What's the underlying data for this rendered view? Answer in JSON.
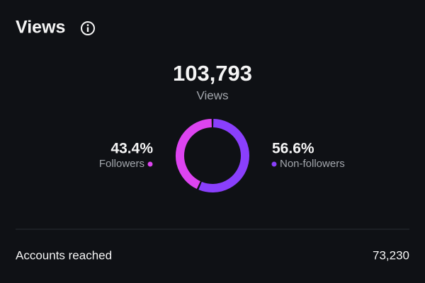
{
  "header": {
    "title": "Views"
  },
  "total": {
    "value": "103,793",
    "label": "Views"
  },
  "chart_data": {
    "type": "donut",
    "categories": [
      "Followers",
      "Non-followers"
    ],
    "values": [
      43.4,
      56.6
    ],
    "value_labels": [
      "43.4%",
      "56.6%"
    ],
    "colors": [
      "#dd44f0",
      "#8a3ffc"
    ]
  },
  "metrics": [
    {
      "label": "Accounts reached",
      "value": "73,230"
    }
  ]
}
